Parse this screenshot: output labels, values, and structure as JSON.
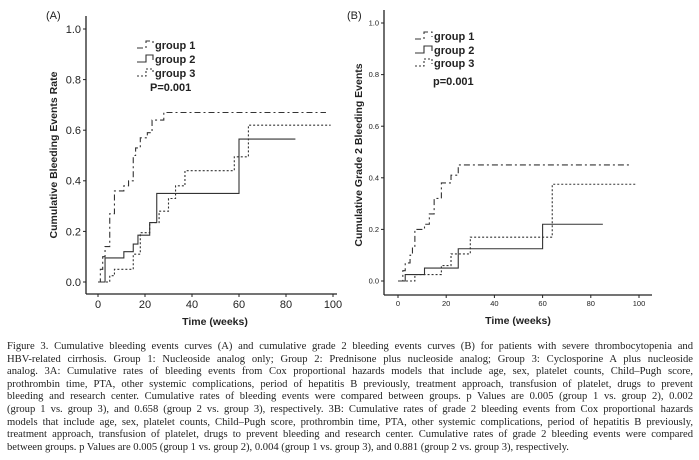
{
  "chart_data": [
    {
      "type": "line",
      "step": true,
      "panel": "(A)",
      "xlabel": "Time (weeks)",
      "ylabel": "Cumulative Bleeding Events Rate",
      "xlim": [
        0,
        100
      ],
      "ylim": [
        0,
        1.0
      ],
      "xticks": [
        "0",
        "20",
        "40",
        "60",
        "80",
        "100"
      ],
      "yticks": [
        "0.0",
        "0.2",
        "0.4",
        "0.6",
        "0.8",
        "1.0"
      ],
      "annotation": "P=0.001",
      "legend_position": "top-left",
      "series": [
        {
          "name": "group 1",
          "style": "dash-dot",
          "points": [
            [
              0,
              0
            ],
            [
              1,
              0.05
            ],
            [
              2,
              0.1
            ],
            [
              3,
              0.14
            ],
            [
              5,
              0.27
            ],
            [
              7,
              0.36
            ],
            [
              11,
              0.38
            ],
            [
              13,
              0.4
            ],
            [
              15,
              0.5
            ],
            [
              16,
              0.53
            ],
            [
              18,
              0.57
            ],
            [
              21,
              0.59
            ],
            [
              23,
              0.64
            ],
            [
              28,
              0.67
            ],
            [
              97,
              0.67
            ]
          ]
        },
        {
          "name": "group 2",
          "style": "solid",
          "points": [
            [
              0,
              0
            ],
            [
              3,
              0.095
            ],
            [
              11,
              0.12
            ],
            [
              15,
              0.15
            ],
            [
              17,
              0.185
            ],
            [
              22,
              0.235
            ],
            [
              25,
              0.35
            ],
            [
              60,
              0.565
            ],
            [
              84,
              0.565
            ]
          ]
        },
        {
          "name": "group 3",
          "style": "dotted",
          "points": [
            [
              0,
              0
            ],
            [
              4,
              0
            ],
            [
              5,
              0.025
            ],
            [
              7,
              0.05
            ],
            [
              15,
              0.11
            ],
            [
              18,
              0.195
            ],
            [
              22,
              0.235
            ],
            [
              26,
              0.28
            ],
            [
              30,
              0.33
            ],
            [
              33,
              0.38
            ],
            [
              37,
              0.44
            ],
            [
              58,
              0.495
            ],
            [
              64,
              0.62
            ],
            [
              99,
              0.62
            ]
          ]
        }
      ]
    },
    {
      "type": "line",
      "step": true,
      "panel": "(B)",
      "xlabel": "Time (weeks)",
      "ylabel": "Cumulative Grade 2 Bleeding Events",
      "xlim": [
        0,
        100
      ],
      "ylim": [
        0,
        1.0
      ],
      "xticks": [
        "0",
        "20",
        "40",
        "60",
        "80",
        "100"
      ],
      "yticks": [
        "0.0",
        "0.2",
        "0.4",
        "0.6",
        "0.8",
        "1.0"
      ],
      "annotation": "p=0.001",
      "legend_position": "top-left",
      "series": [
        {
          "name": "group 1",
          "style": "dash-dot",
          "points": [
            [
              0,
              0
            ],
            [
              2,
              0.04
            ],
            [
              3,
              0.07
            ],
            [
              5,
              0.1
            ],
            [
              6,
              0.13
            ],
            [
              7,
              0.2
            ],
            [
              11,
              0.22
            ],
            [
              13,
              0.26
            ],
            [
              15,
              0.32
            ],
            [
              18,
              0.38
            ],
            [
              22,
              0.41
            ],
            [
              25,
              0.45
            ],
            [
              97,
              0.45
            ]
          ]
        },
        {
          "name": "group 2",
          "style": "solid",
          "points": [
            [
              0,
              0
            ],
            [
              3,
              0.025
            ],
            [
              11,
              0.05
            ],
            [
              25,
              0.125
            ],
            [
              60,
              0.22
            ],
            [
              85,
              0.22
            ]
          ]
        },
        {
          "name": "group 3",
          "style": "dotted",
          "points": [
            [
              0,
              0
            ],
            [
              7,
              0.025
            ],
            [
              18,
              0.06
            ],
            [
              22,
              0.105
            ],
            [
              30,
              0.17
            ],
            [
              64,
              0.375
            ],
            [
              99,
              0.375
            ]
          ]
        }
      ]
    }
  ],
  "caption": {
    "lines": [
      "Figure 3.  Cumulative bleeding events curves (A) and cumulative grade 2 bleeding events curves (B) for patients with severe thrombocytopenia and",
      "HBV-related cirrhosis. Group 1: Nucleoside analog only; Group 2: Prednisone plus nucleoside analog; Group 3: Cyclosporine A plus nucleoside",
      "analog.   3A: Cumulative rates of bleeding events from Cox proportional hazards models that include age, sex, platelet counts, Child–Pugh score,",
      "prothrombin time, PTA, other systemic complications, period of hepatitis B previously, treatment approach, transfusion of platelet, drugs to prevent",
      "bleeding and research center. Cumulative rates of bleeding events were compared between groups. p Values are 0.005 (group 1 vs. group 2), 0.002",
      "(group 1 vs. group 3), and 0.658 (group 2 vs. group 3), respectively.   3B: Cumulative rates of grade 2 bleeding events from Cox proportional hazards",
      "models that include age, sex, platelet counts, Child–Pugh score, prothrombin time, PTA, other systemic complications, period of hepatitis B previously,",
      "treatment approach, transfusion of platelet, drugs to prevent bleeding and research center. Cumulative rates of grade 2 bleeding events were compared",
      "between groups. p Values are 0.005 (group 1 vs. group 2), 0.004 (group 1 vs. group 3), and 0.881 (group 2 vs. group 3), respectively."
    ]
  }
}
